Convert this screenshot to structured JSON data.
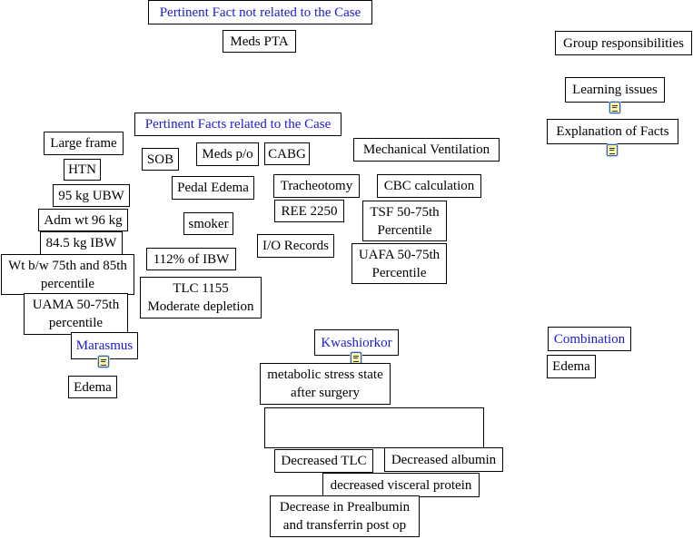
{
  "nodes": {
    "not_related": "Pertinent Fact not related to the Case",
    "meds_pta": "Meds PTA",
    "group_resp": "Group responsibilities",
    "learning": "Learning issues",
    "explanation": "Explanation of Facts",
    "related": "Pertinent Facts related to the Case",
    "large_frame": "Large frame",
    "htn": "HTN",
    "ubw": "95 kg UBW",
    "adm_wt": "Adm wt 96 kg",
    "ibw": "84.5 kg IBW",
    "wt_bw": "Wt b/w 75th and 85th\npercentile",
    "uama": "UAMA 50-75th\npercentile",
    "marasmus": "Marasmus",
    "edema_left": "Edema",
    "sob": "SOB",
    "meds_po": "Meds p/o",
    "cabg": "CABG",
    "mech_vent": "Mechanical Ventilation",
    "pedal_edema": "Pedal Edema",
    "tracheotomy": "Tracheotomy",
    "cbc": "CBC calculation",
    "ree": "REE 2250",
    "smoker": "smoker",
    "tsf": "TSF 50-75th\nPercentile",
    "io": "I/O Records",
    "uafa": "UAFA 50-75th\nPercentile",
    "pct_ibw": "112% of IBW",
    "tlc": "TLC 1155\nModerate depletion",
    "kwashiorkor": "Kwashiorkor",
    "combination": "Combination",
    "edema_right": "Edema",
    "metabolic": "metabolic stress state\nafter surgery",
    "empty": "",
    "dec_tlc": "Decreased TLC",
    "dec_alb": "Decreased albumin",
    "dec_visceral": "decreased visceral protein",
    "dec_prealb": "Decrease in Prealbumin\nand transferrin post op"
  },
  "colors": {
    "heading_text": "#1a1ad4",
    "note_icon_fill": "#fbf3a8",
    "note_icon_border": "#2b5fb5"
  },
  "icons": [
    "note-icon"
  ]
}
